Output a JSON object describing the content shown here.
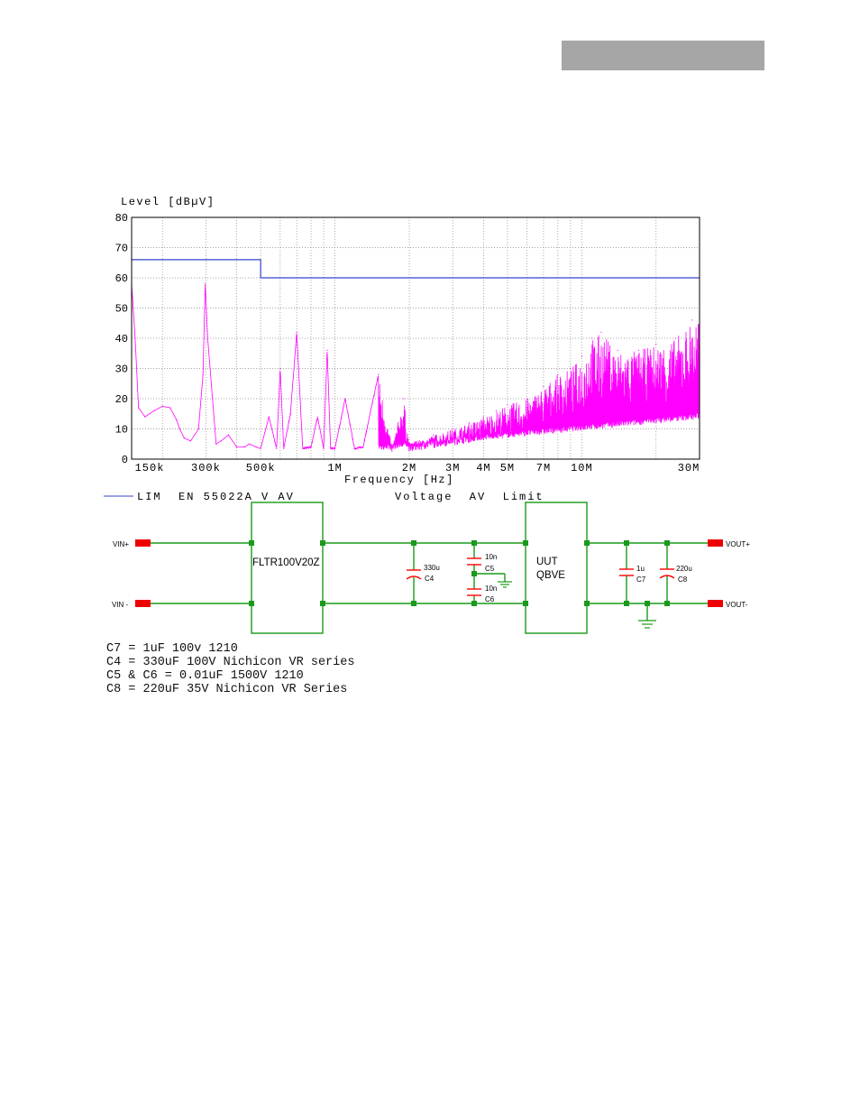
{
  "chart_data": {
    "type": "line",
    "ylabel": "Level  [dBµV]",
    "xlabel": "Frequency  [Hz]",
    "x_scale": "log",
    "xlim": [
      150000,
      30000000
    ],
    "ylim": [
      0,
      80
    ],
    "yticks": [
      0,
      10,
      20,
      30,
      40,
      50,
      60,
      70,
      80
    ],
    "xtick_labels": [
      {
        "value": 150000,
        "label": "150k"
      },
      {
        "value": 300000,
        "label": "300k"
      },
      {
        "value": 500000,
        "label": "500k"
      },
      {
        "value": 1000000,
        "label": "1M"
      },
      {
        "value": 2000000,
        "label": "2M"
      },
      {
        "value": 3000000,
        "label": "3M"
      },
      {
        "value": 4000000,
        "label": "4M"
      },
      {
        "value": 5000000,
        "label": "5M"
      },
      {
        "value": 7000000,
        "label": "7M"
      },
      {
        "value": 10000000,
        "label": "10M"
      },
      {
        "value": 30000000,
        "label": "30M"
      }
    ],
    "grid": true,
    "series": [
      {
        "name": "LIM  EN 55022A V AV",
        "color": "#3344cc",
        "x": [
          150000,
          500000,
          500000,
          30000000
        ],
        "y": [
          66,
          66,
          60,
          60
        ]
      },
      {
        "color": "#ff00ff",
        "x": [
          150000,
          155000,
          160000,
          170000,
          185000,
          200000,
          215000,
          228000,
          235000,
          245000,
          260000,
          280000,
          292000,
          298000,
          305000,
          330000,
          345000,
          370000,
          400000,
          430000,
          450000,
          480000,
          500000,
          540000,
          580000,
          600000,
          620000,
          660000,
          700000,
          740000,
          800000,
          850000,
          900000,
          930000,
          960000,
          1000000,
          1100000,
          1200000,
          1300000,
          1500000,
          1700000,
          1900000,
          2000000,
          2200000,
          2500000,
          3000000,
          3500000,
          4000000,
          4500000,
          5000000,
          6000000,
          7000000,
          8000000,
          9000000,
          10000000,
          11000000,
          12000000,
          14000000,
          17000000,
          20000000,
          24000000,
          28000000,
          30000000
        ],
        "y": [
          58,
          40,
          17,
          14,
          16,
          17.5,
          17,
          13,
          10,
          7,
          6,
          10,
          28,
          58,
          40,
          5,
          6,
          8,
          4,
          4,
          5,
          4,
          3.5,
          14,
          3.5,
          30,
          3.5,
          15,
          42,
          3.5,
          4,
          14,
          3.5,
          36,
          3.5,
          3.5,
          20,
          3.5,
          4,
          28,
          4,
          20,
          5,
          6,
          8,
          10,
          12,
          14,
          16,
          18,
          20,
          24,
          28,
          30,
          34,
          40,
          42,
          36,
          36,
          38,
          40,
          46,
          48
        ]
      }
    ],
    "legend": {
      "position": "bottom-left",
      "entries": [
        {
          "line_label": "LIM  EN 55022A V AV",
          "description": "Voltage  AV  Limit"
        }
      ]
    }
  },
  "schematic": {
    "labels": {
      "vin_plus": "VIN+",
      "vin_minus": "VIN -",
      "vout_plus": "VOUT+",
      "vout_minus": "VOUT-",
      "filter": "FLTR100V20Z",
      "uut_line1": "UUT",
      "uut_line2": "QBVE",
      "c4_value": "330u",
      "c4_name": "C4",
      "c5_value": "10n",
      "c5_name": "C5",
      "c6_value": "10n",
      "c6_name": "C6",
      "c7_value": "1u",
      "c7_name": "C7",
      "c8_value": "220u",
      "c8_name": "C8"
    },
    "wire_color": "#1a9a1a",
    "cap_color": "#ff0000",
    "terminal_color": "#ee0000"
  },
  "notes": [
    "C7 = 1uF 100v 1210",
    "C4 = 330uF 100V Nichicon VR series",
    "C5 & C6 = 0.01uF 1500V 1210",
    "C8 = 220uF 35V Nichicon VR Series"
  ]
}
